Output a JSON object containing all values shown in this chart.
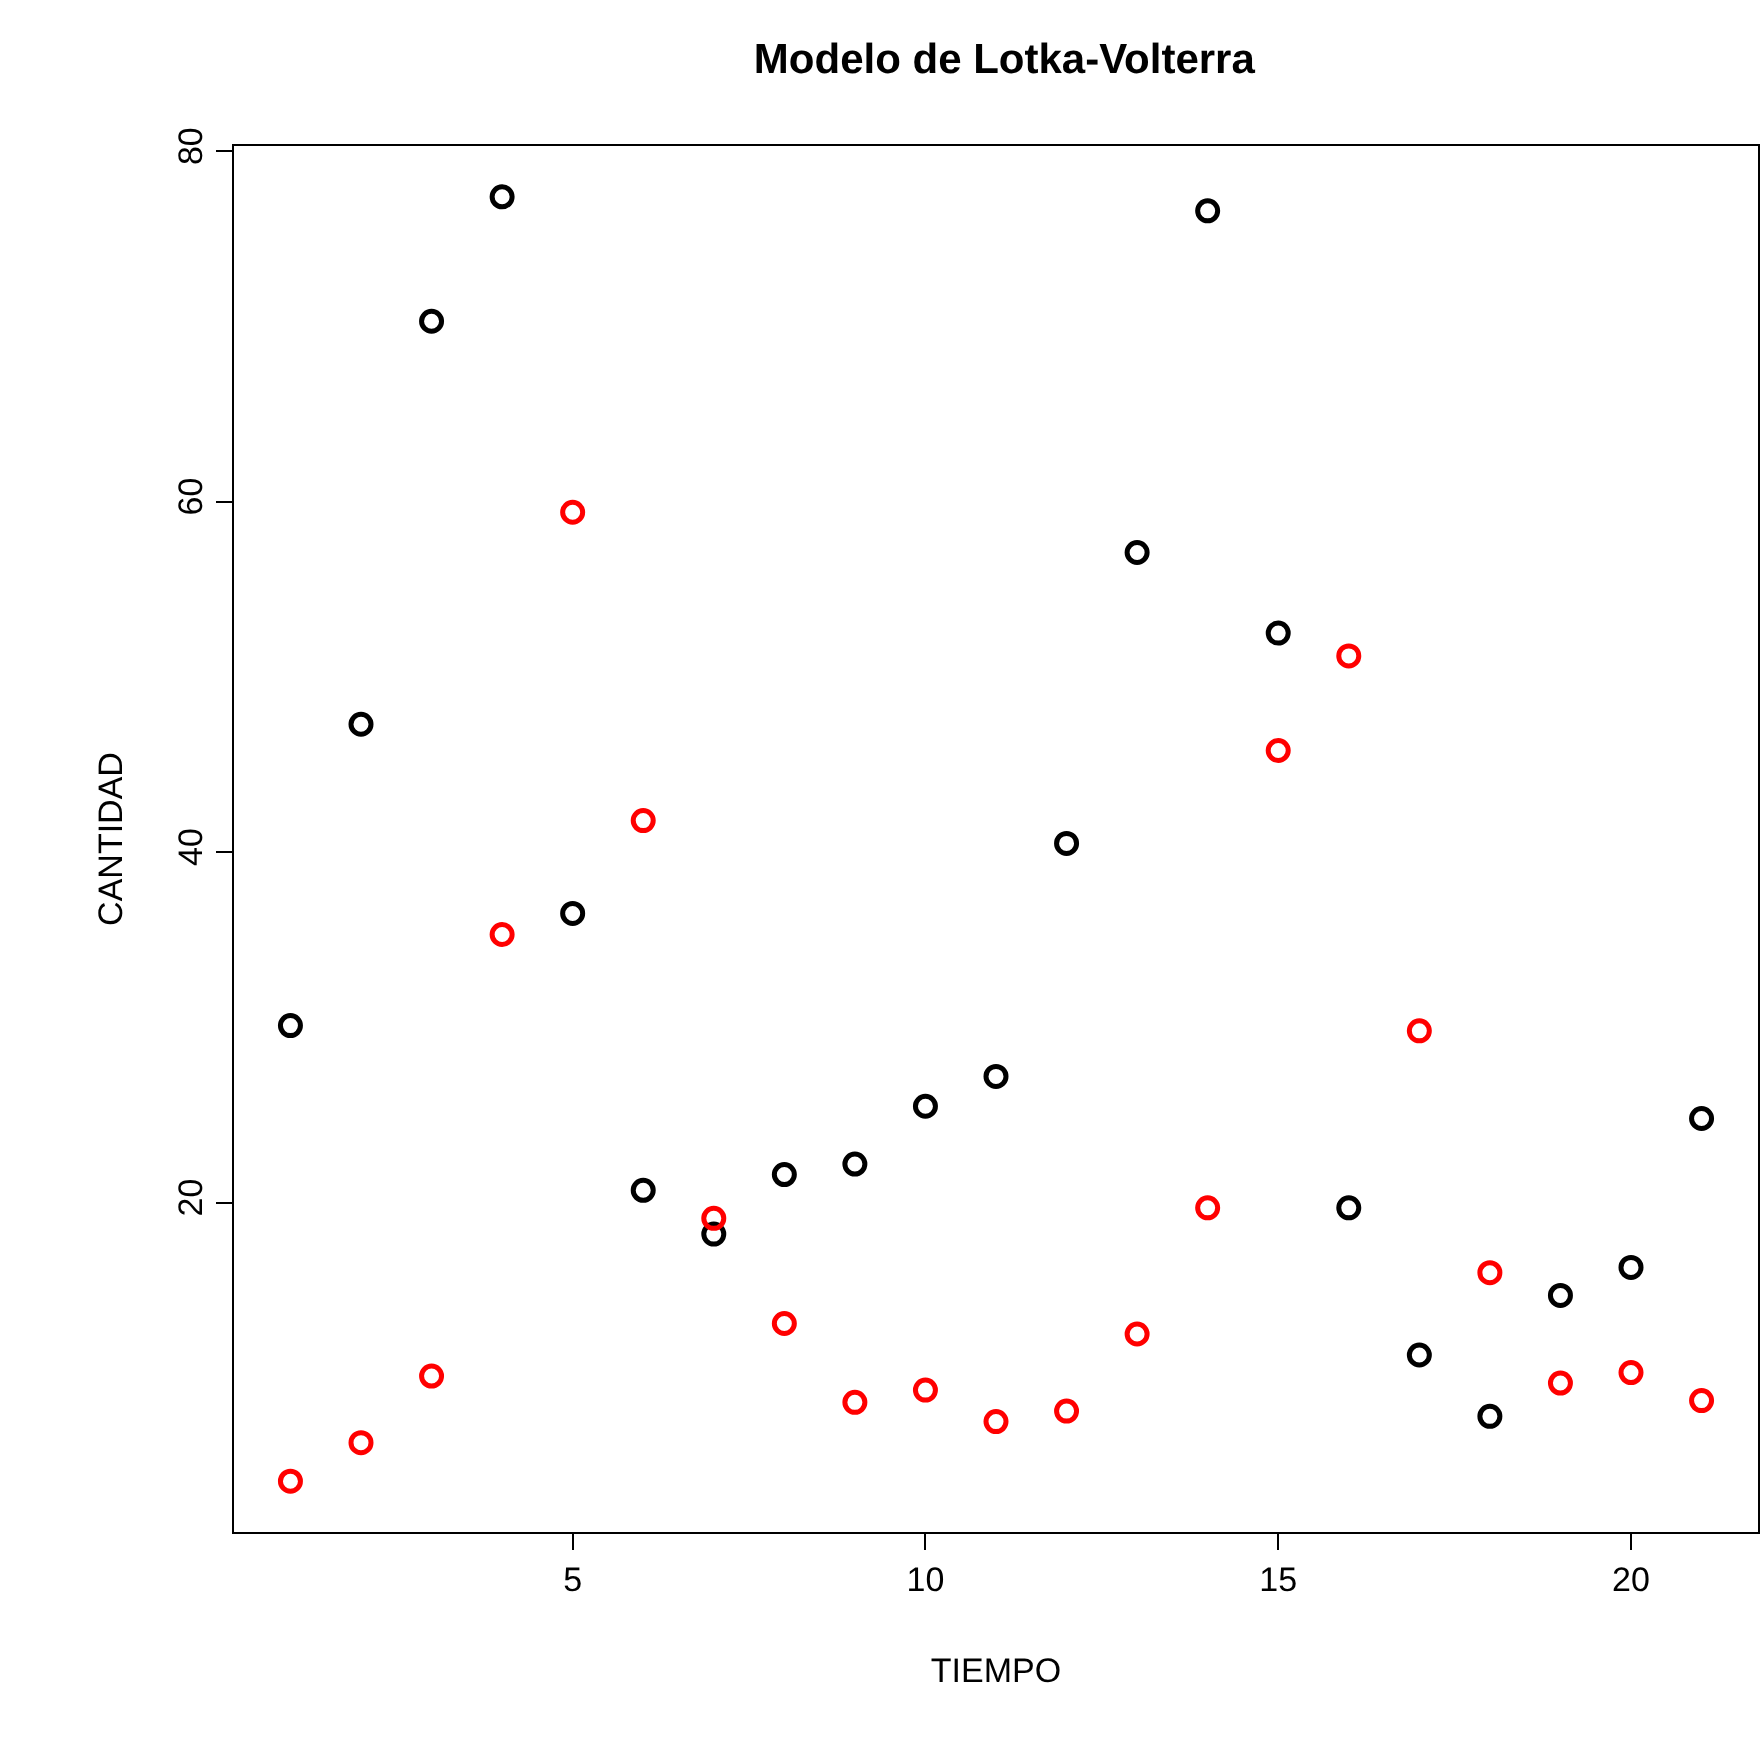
{
  "chart_data": {
    "type": "scatter",
    "title": "Modelo de Lotka-Volterra",
    "xlabel": "TIEMPO",
    "ylabel": "CANTIDAD",
    "x": [
      1,
      2,
      3,
      4,
      5,
      6,
      7,
      8,
      9,
      10,
      11,
      12,
      13,
      14,
      15,
      16,
      17,
      18,
      19,
      20,
      21
    ],
    "series": [
      {
        "color": "#000000",
        "values": [
          30.1,
          47.3,
          70.3,
          77.4,
          36.5,
          20.7,
          18.2,
          21.6,
          22.2,
          25.5,
          27.2,
          40.5,
          57.1,
          76.6,
          52.5,
          19.7,
          11.3,
          7.8,
          14.7,
          16.3,
          24.8
        ]
      },
      {
        "color": "#ff0000",
        "values": [
          4.1,
          6.3,
          10.1,
          35.3,
          59.4,
          41.8,
          19.1,
          13.1,
          8.6,
          9.3,
          7.5,
          8.1,
          12.5,
          19.7,
          45.8,
          51.2,
          29.8,
          16.0,
          9.7,
          10.3,
          8.7
        ]
      }
    ],
    "xlim": [
      0.2,
      21.8
    ],
    "ylim": [
      1.2,
      80.3
    ],
    "xticks": [
      5,
      10,
      15,
      20
    ],
    "yticks": [
      20,
      40,
      60,
      80
    ],
    "marker": "circle"
  }
}
